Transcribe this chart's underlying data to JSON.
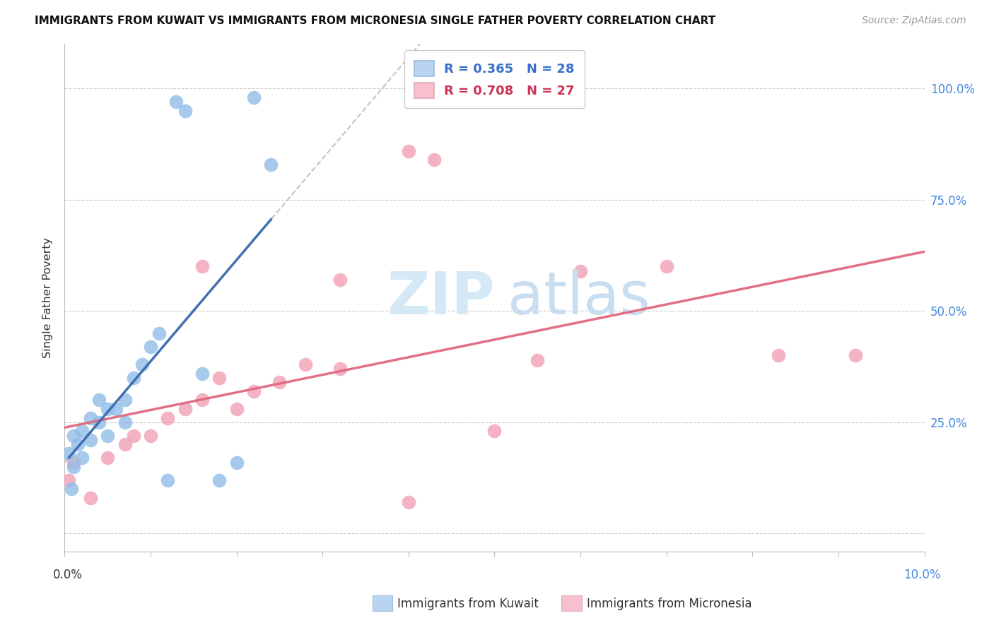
{
  "title": "IMMIGRANTS FROM KUWAIT VS IMMIGRANTS FROM MICRONESIA SINGLE FATHER POVERTY CORRELATION CHART",
  "source": "Source: ZipAtlas.com",
  "ylabel": "Single Father Poverty",
  "color_kuwait": "#90bce8",
  "color_micronesia": "#f0a0b5",
  "color_kuwait_line": "#3a6ab0",
  "color_micronesia_line": "#e06880",
  "color_kuwait_legend_box": "#b8d4f0",
  "color_micronesia_legend_box": "#f8c0cc",
  "R_kuwait": 0.365,
  "N_kuwait": 28,
  "R_micronesia": 0.708,
  "N_micronesia": 27,
  "ytick_values": [
    0.0,
    0.25,
    0.5,
    0.75,
    1.0
  ],
  "ytick_right_labels": [
    "",
    "25.0%",
    "50.0%",
    "75.0%",
    "100.0%"
  ],
  "xlim": [
    0,
    0.1
  ],
  "ylim": [
    -0.04,
    1.1
  ],
  "kuwait_x": [
    0.0005,
    0.0008,
    0.001,
    0.001,
    0.0015,
    0.002,
    0.002,
    0.003,
    0.003,
    0.004,
    0.004,
    0.005,
    0.005,
    0.006,
    0.007,
    0.007,
    0.008,
    0.009,
    0.01,
    0.011,
    0.012,
    0.013,
    0.014,
    0.016,
    0.018,
    0.02,
    0.022,
    0.024
  ],
  "kuwait_y": [
    0.18,
    0.1,
    0.22,
    0.15,
    0.2,
    0.23,
    0.17,
    0.26,
    0.21,
    0.3,
    0.25,
    0.28,
    0.22,
    0.28,
    0.3,
    0.25,
    0.35,
    0.38,
    0.42,
    0.45,
    0.12,
    0.97,
    0.95,
    0.36,
    0.12,
    0.16,
    0.98,
    0.83
  ],
  "kuwait_line_x": [
    0.003,
    0.014
  ],
  "kuwait_line_y": [
    0.25,
    0.5
  ],
  "micronesia_x": [
    0.0005,
    0.001,
    0.003,
    0.005,
    0.007,
    0.008,
    0.01,
    0.012,
    0.014,
    0.016,
    0.018,
    0.02,
    0.022,
    0.025,
    0.028,
    0.032,
    0.04,
    0.043,
    0.05,
    0.055,
    0.06,
    0.07,
    0.083,
    0.092,
    0.016,
    0.032,
    0.04
  ],
  "micronesia_y": [
    0.12,
    0.16,
    0.08,
    0.17,
    0.2,
    0.22,
    0.22,
    0.26,
    0.28,
    0.3,
    0.35,
    0.28,
    0.32,
    0.34,
    0.38,
    0.37,
    0.86,
    0.84,
    0.23,
    0.39,
    0.59,
    0.6,
    0.4,
    0.4,
    0.6,
    0.57,
    0.07
  ]
}
